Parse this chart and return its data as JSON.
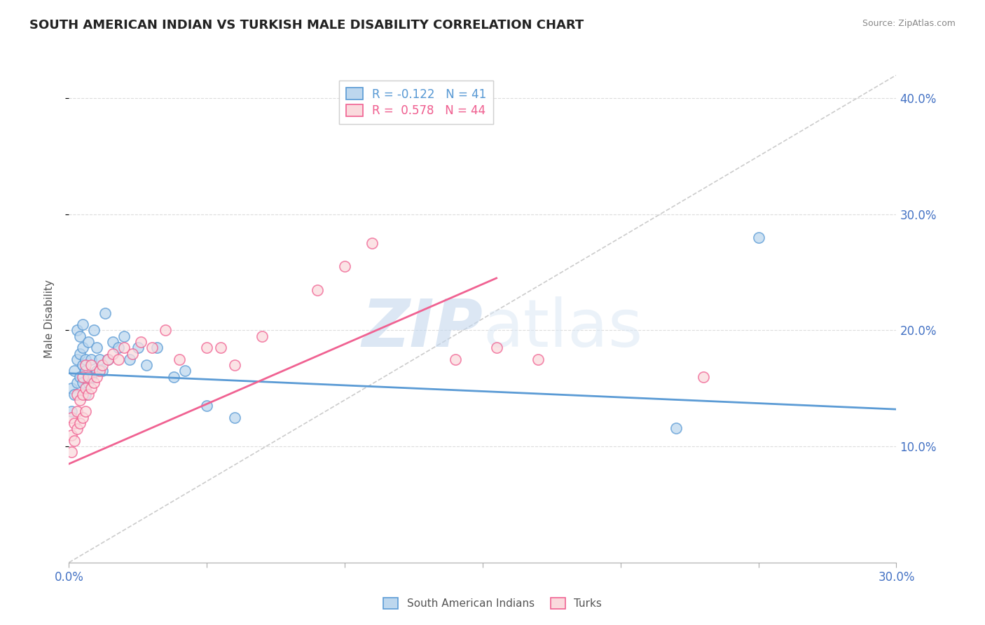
{
  "title": "SOUTH AMERICAN INDIAN VS TURKISH MALE DISABILITY CORRELATION CHART",
  "source": "Source: ZipAtlas.com",
  "ylabel": "Male Disability",
  "xlim": [
    0.0,
    0.3
  ],
  "ylim": [
    0.0,
    0.42
  ],
  "ytick_labels": [
    "10.0%",
    "20.0%",
    "30.0%",
    "40.0%"
  ],
  "ytick_values": [
    0.1,
    0.2,
    0.3,
    0.4
  ],
  "blue_color": "#5b9bd5",
  "pink_color": "#f06292",
  "blue_fill": "#bdd7ee",
  "pink_fill": "#fadadd",
  "blue_label": "South American Indians",
  "pink_label": "Turks",
  "R_blue": -0.122,
  "N_blue": 41,
  "R_pink": 0.578,
  "N_pink": 44,
  "watermark_zip": "ZIP",
  "watermark_atlas": "atlas",
  "diag_line": [
    [
      0.0,
      0.3
    ],
    [
      0.0,
      0.42
    ]
  ],
  "blue_trend_start": 0.163,
  "blue_trend_end": 0.132,
  "pink_trend_start": 0.085,
  "pink_trend_end": 0.245,
  "blue_scatter_x": [
    0.001,
    0.001,
    0.002,
    0.002,
    0.003,
    0.003,
    0.003,
    0.004,
    0.004,
    0.004,
    0.005,
    0.005,
    0.005,
    0.005,
    0.006,
    0.006,
    0.006,
    0.007,
    0.007,
    0.008,
    0.008,
    0.009,
    0.01,
    0.01,
    0.011,
    0.012,
    0.013,
    0.014,
    0.016,
    0.018,
    0.02,
    0.022,
    0.025,
    0.028,
    0.032,
    0.038,
    0.042,
    0.05,
    0.06,
    0.22,
    0.25
  ],
  "blue_scatter_y": [
    0.13,
    0.15,
    0.145,
    0.165,
    0.155,
    0.175,
    0.2,
    0.16,
    0.18,
    0.195,
    0.155,
    0.17,
    0.185,
    0.205,
    0.145,
    0.165,
    0.175,
    0.155,
    0.19,
    0.16,
    0.175,
    0.2,
    0.165,
    0.185,
    0.175,
    0.165,
    0.215,
    0.175,
    0.19,
    0.185,
    0.195,
    0.175,
    0.185,
    0.17,
    0.185,
    0.16,
    0.165,
    0.135,
    0.125,
    0.116,
    0.28
  ],
  "pink_scatter_x": [
    0.001,
    0.001,
    0.001,
    0.002,
    0.002,
    0.003,
    0.003,
    0.003,
    0.004,
    0.004,
    0.005,
    0.005,
    0.005,
    0.006,
    0.006,
    0.006,
    0.007,
    0.007,
    0.008,
    0.008,
    0.009,
    0.01,
    0.011,
    0.012,
    0.014,
    0.016,
    0.018,
    0.02,
    0.023,
    0.026,
    0.03,
    0.035,
    0.04,
    0.05,
    0.055,
    0.06,
    0.07,
    0.09,
    0.1,
    0.11,
    0.14,
    0.155,
    0.17,
    0.23
  ],
  "pink_scatter_y": [
    0.095,
    0.11,
    0.125,
    0.105,
    0.12,
    0.115,
    0.13,
    0.145,
    0.12,
    0.14,
    0.125,
    0.145,
    0.16,
    0.13,
    0.15,
    0.17,
    0.145,
    0.16,
    0.15,
    0.17,
    0.155,
    0.16,
    0.165,
    0.17,
    0.175,
    0.18,
    0.175,
    0.185,
    0.18,
    0.19,
    0.185,
    0.2,
    0.175,
    0.185,
    0.185,
    0.17,
    0.195,
    0.235,
    0.255,
    0.275,
    0.175,
    0.185,
    0.175,
    0.16
  ]
}
